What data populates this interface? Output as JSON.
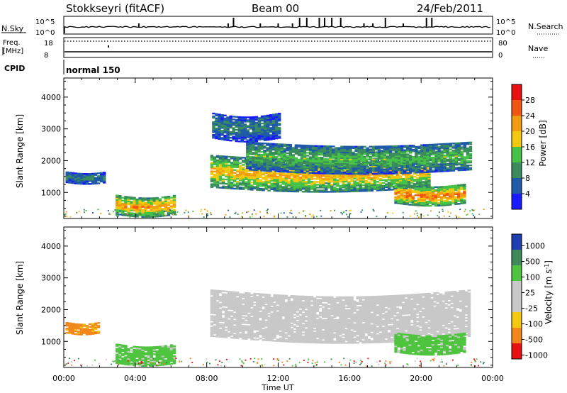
{
  "header": {
    "station": "Stokkseyri (fitACF)",
    "beam": "Beam 00",
    "date": "24/Feb/2011"
  },
  "panels": {
    "nsky": {
      "label": "N.Sky",
      "ticks_left": [
        "10^5",
        "10^0"
      ],
      "right_label": "N.Search",
      "ticks_right": [
        "10^5",
        "10^0"
      ]
    },
    "freq": {
      "label_line1": "Freq.",
      "label_line2": "[MHz]",
      "ticks_left": [
        "18",
        "8"
      ],
      "right_label": "Nave",
      "ticks_right": [
        "80",
        "0"
      ]
    },
    "cpid": {
      "label": "CPID",
      "value": "normal 150"
    }
  },
  "power": {
    "ylabel": "Slant Range [km]",
    "yticks": [
      "1000",
      "2000",
      "3000",
      "4000"
    ],
    "colorbar_label": "Power [dB]",
    "colorbar_ticks": [
      "4",
      "8",
      "12",
      "16",
      "20",
      "24",
      "28"
    ],
    "colors": [
      "#1a1aff",
      "#1f5ba8",
      "#3a8c5c",
      "#46c246",
      "#f2c811",
      "#f29b11",
      "#f25511",
      "#e81010"
    ]
  },
  "velocity": {
    "ylabel": "Slant Range [km]",
    "yticks": [
      "1000",
      "2000",
      "3000",
      "4000"
    ],
    "colorbar_label": "Velocity [m s",
    "colorbar_label_sup": "-1",
    "colorbar_ticks": [
      "1000",
      "500",
      "100",
      "25",
      "-25",
      "-100",
      "-500",
      "-1000"
    ],
    "colors": [
      "#1f3fb0",
      "#3f8a5a",
      "#4fc43f",
      "#c8c8c8",
      "#c8c8c8",
      "#f2c811",
      "#f2881a",
      "#e81010"
    ]
  },
  "xaxis": {
    "label": "Time UT",
    "ticks": [
      "00:00",
      "04:00",
      "08:00",
      "12:00",
      "16:00",
      "20:00",
      "00:00"
    ]
  },
  "chart_data": {
    "type": "heatmap",
    "x_range_hours": [
      0,
      24
    ],
    "y_range_km": [
      180,
      4600
    ],
    "power_echo_regions": [
      {
        "t_start": 0.1,
        "t_end": 2.3,
        "r_low": 1300,
        "r_high": 1650,
        "power_db": 8
      },
      {
        "t_start": 2.9,
        "t_end": 6.2,
        "r_low": 300,
        "r_high": 900,
        "power_db": 20
      },
      {
        "t_start": 8.2,
        "t_end": 20.5,
        "r_low": 1150,
        "r_high": 2150,
        "power_db": 18
      },
      {
        "t_start": 10.2,
        "t_end": 22.7,
        "r_low": 1700,
        "r_high": 2600,
        "power_db": 12
      },
      {
        "t_start": 8.3,
        "t_end": 12,
        "r_low": 2700,
        "r_high": 3500,
        "power_db": 8
      },
      {
        "t_start": 18.5,
        "t_end": 22.4,
        "r_low": 650,
        "r_high": 1250,
        "power_db": 22
      }
    ],
    "velocity_echo_regions": [
      {
        "t_start": 0.1,
        "t_end": 1.9,
        "r_low": 1250,
        "r_high": 1600,
        "velocity": -100
      },
      {
        "t_start": 2.9,
        "t_end": 6.2,
        "r_low": 300,
        "r_high": 900,
        "velocity": 100
      },
      {
        "t_start": 8.2,
        "t_end": 22.7,
        "r_low": 1150,
        "r_high": 2600,
        "velocity": 0
      },
      {
        "t_start": 18.5,
        "t_end": 22.4,
        "r_low": 650,
        "r_high": 1250,
        "velocity": 100
      }
    ]
  }
}
